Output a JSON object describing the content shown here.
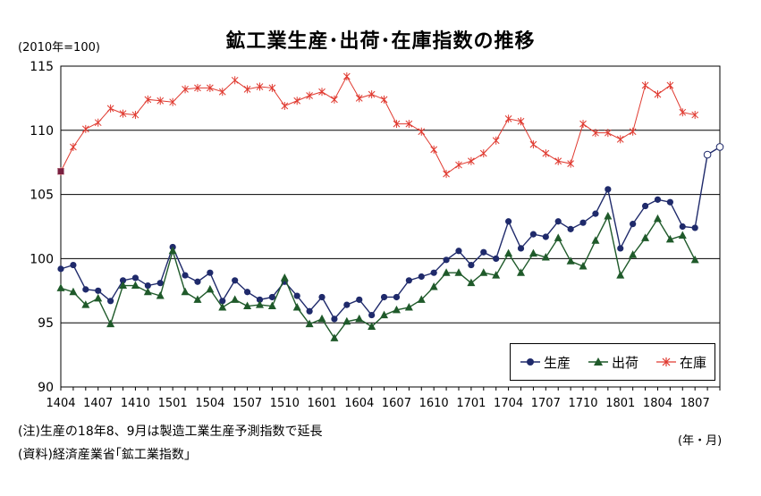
{
  "chart_data": {
    "type": "line",
    "title": "鉱工業生産･出荷･在庫指数の推移",
    "unit_label": "(2010年=100)",
    "x_unit_label": "(年・月)",
    "ylim": [
      90,
      115
    ],
    "yticks": [
      "90",
      "95",
      "100",
      "105",
      "110",
      "115"
    ],
    "grid": true,
    "legend_position": "bottom-right",
    "x_tick_labels": [
      "1404",
      "1407",
      "1410",
      "1501",
      "1504",
      "1507",
      "1510",
      "1601",
      "1604",
      "1607",
      "1610",
      "1701",
      "1704",
      "1707",
      "1710",
      "1801",
      "1804",
      "1807"
    ],
    "x_period_count": 54,
    "series": [
      {
        "name": "生産",
        "color": "#1f2a6b",
        "marker": "circle",
        "values": [
          99.2,
          99.5,
          97.6,
          97.5,
          96.7,
          98.3,
          98.5,
          97.9,
          98.1,
          100.9,
          98.7,
          98.2,
          98.9,
          96.7,
          98.3,
          97.4,
          96.8,
          97.0,
          98.2,
          97.1,
          95.9,
          97.0,
          95.3,
          96.4,
          96.8,
          95.6,
          97.0,
          97.0,
          98.3,
          98.6,
          98.9,
          99.9,
          100.6,
          99.5,
          100.5,
          100.0,
          102.9,
          100.8,
          101.9,
          101.7,
          102.9,
          102.3,
          102.8,
          103.5,
          105.4,
          100.8,
          102.7,
          104.1,
          104.6,
          104.4,
          102.5,
          102.4
        ]
      },
      {
        "name": "出荷",
        "color": "#1f5a2a",
        "marker": "triangle",
        "values": [
          97.7,
          97.4,
          96.4,
          96.9,
          94.9,
          97.9,
          97.9,
          97.4,
          97.1,
          100.6,
          97.4,
          96.8,
          97.6,
          96.2,
          96.8,
          96.3,
          96.4,
          96.3,
          98.5,
          96.2,
          94.9,
          95.3,
          93.8,
          95.1,
          95.3,
          94.7,
          95.6,
          96.0,
          96.2,
          96.8,
          97.8,
          98.9,
          98.9,
          98.1,
          98.9,
          98.7,
          100.4,
          98.9,
          100.4,
          100.1,
          101.6,
          99.8,
          99.4,
          101.4,
          103.3,
          98.7,
          100.3,
          101.6,
          103.1,
          101.5,
          101.8,
          99.9
        ]
      },
      {
        "name": "在庫",
        "color": "#e03a30",
        "marker": "asterisk",
        "values": [
          106.8,
          108.7,
          110.1,
          110.6,
          111.7,
          111.3,
          111.2,
          112.4,
          112.3,
          112.2,
          113.2,
          113.3,
          113.3,
          113.0,
          113.9,
          113.2,
          113.4,
          113.3,
          111.9,
          112.3,
          112.7,
          113.0,
          112.4,
          114.2,
          112.5,
          112.8,
          112.4,
          110.5,
          110.5,
          109.9,
          108.5,
          106.6,
          107.3,
          107.6,
          108.2,
          109.2,
          110.9,
          110.7,
          108.9,
          108.2,
          107.6,
          107.4,
          110.5,
          109.8,
          109.8,
          109.3,
          109.9,
          113.5,
          112.8,
          113.5,
          111.4,
          111.2
        ]
      },
      {
        "name": "生産予測",
        "color": "#1f2a6b",
        "marker": "open-circle",
        "values_from_index": 51,
        "values": [
          102.4,
          108.1,
          108.7
        ]
      }
    ]
  },
  "legend": {
    "items": [
      {
        "label": "生産",
        "color": "#1f2a6b",
        "marker": "circle"
      },
      {
        "label": "出荷",
        "color": "#1f5a2a",
        "marker": "triangle"
      },
      {
        "label": "在庫",
        "color": "#e03a30",
        "marker": "asterisk"
      }
    ]
  },
  "notes": {
    "line1": "(注)生産の18年8、9月は製造工業生産予測指数で延長",
    "line2": "(資料)経済産業省｢鉱工業指数｣"
  }
}
